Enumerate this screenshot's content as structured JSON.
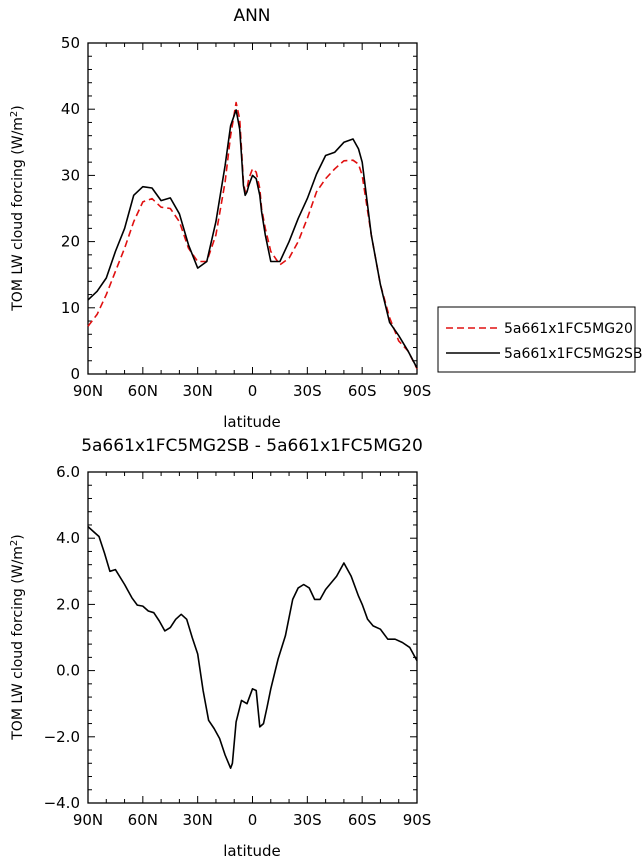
{
  "chart_data": [
    {
      "type": "line",
      "title": "ANN",
      "xlabel": "latitude",
      "ylabel": "TOM LW cloud forcing (W/m",
      "ylabel_sup": "2",
      "ylabel_close": ")",
      "x_ticks": [
        {
          "value": 90,
          "label": "90N"
        },
        {
          "value": 60,
          "label": "60N"
        },
        {
          "value": 30,
          "label": "30N"
        },
        {
          "value": 0,
          "label": "0"
        },
        {
          "value": -30,
          "label": "30S"
        },
        {
          "value": -60,
          "label": "60S"
        },
        {
          "value": -90,
          "label": "90S"
        }
      ],
      "xlim": [
        90,
        -90
      ],
      "ylim": [
        0,
        50
      ],
      "y_ticks": [
        {
          "value": 0,
          "label": "0"
        },
        {
          "value": 10,
          "label": "10"
        },
        {
          "value": 20,
          "label": "20"
        },
        {
          "value": 30,
          "label": "30"
        },
        {
          "value": 40,
          "label": "40"
        },
        {
          "value": 50,
          "label": "50"
        }
      ],
      "legend_placement": "right",
      "series": [
        {
          "name": "5a661x1FC5MG20",
          "color": "#e01010",
          "dash": "dashed",
          "x": [
            90,
            85,
            80,
            75,
            70,
            65,
            60,
            55,
            50,
            45,
            40,
            35,
            30,
            25,
            20,
            15,
            12,
            9,
            7,
            6,
            5,
            4,
            3,
            2,
            0,
            -2,
            -4,
            -5,
            -7,
            -10,
            -15,
            -20,
            -25,
            -30,
            -35,
            -40,
            -45,
            -50,
            -55,
            -58,
            -60,
            -65,
            -70,
            -75,
            -80,
            -85,
            -90
          ],
          "y": [
            7.2,
            9,
            12,
            15.5,
            19,
            23,
            26,
            26.5,
            25.2,
            25,
            23,
            19,
            17,
            17,
            21,
            29,
            36,
            41,
            38.5,
            34,
            29,
            27.5,
            28,
            29.5,
            31,
            30.5,
            28,
            25,
            22,
            18.5,
            16.5,
            17.5,
            20,
            23.5,
            27.5,
            29.5,
            31,
            32.2,
            32.3,
            31.7,
            30,
            21,
            13.5,
            8.5,
            5,
            3.5,
            0.8
          ]
        },
        {
          "name": "5a661x1FC5MG2SB",
          "color": "#000000",
          "dash": "solid",
          "x": [
            90,
            85,
            80,
            75,
            70,
            65,
            60,
            55,
            50,
            45,
            40,
            35,
            30,
            25,
            20,
            15,
            12,
            9,
            7,
            6,
            5,
            4,
            3,
            2,
            0,
            -2,
            -4,
            -5,
            -7,
            -10,
            -15,
            -20,
            -25,
            -30,
            -35,
            -40,
            -45,
            -50,
            -55,
            -58,
            -60,
            -65,
            -70,
            -75,
            -80,
            -85,
            -90
          ],
          "y": [
            11.2,
            12.5,
            14.5,
            18.5,
            22,
            27,
            28.3,
            28.1,
            26.2,
            26.6,
            24.2,
            19.5,
            16,
            17,
            23,
            31.5,
            37.5,
            39.9,
            37,
            33,
            28.5,
            27,
            27.5,
            28.5,
            30,
            29.5,
            27,
            24.5,
            21,
            17,
            17,
            20,
            23.5,
            26.5,
            30.2,
            33,
            33.5,
            35,
            35.5,
            34,
            32,
            21,
            13.5,
            7.8,
            5.8,
            3.5,
            0.9
          ]
        }
      ]
    },
    {
      "type": "line",
      "title": "5a661x1FC5MG2SB - 5a661x1FC5MG20",
      "xlabel": "latitude",
      "ylabel": "TOM LW cloud forcing (W/m",
      "ylabel_sup": "2",
      "ylabel_close": ")",
      "x_ticks": [
        {
          "value": 90,
          "label": "90N"
        },
        {
          "value": 60,
          "label": "60N"
        },
        {
          "value": 30,
          "label": "30N"
        },
        {
          "value": 0,
          "label": "0"
        },
        {
          "value": -30,
          "label": "30S"
        },
        {
          "value": -60,
          "label": "60S"
        },
        {
          "value": -90,
          "label": "90S"
        }
      ],
      "xlim": [
        90,
        -90
      ],
      "ylim": [
        -4,
        6
      ],
      "y_ticks": [
        {
          "value": -4,
          "label": "−4.0"
        },
        {
          "value": -2,
          "label": "−2.0"
        },
        {
          "value": 0,
          "label": "0.0"
        },
        {
          "value": 2,
          "label": "2.0"
        },
        {
          "value": 4,
          "label": "4.0"
        },
        {
          "value": 6,
          "label": "6.0"
        }
      ],
      "series": [
        {
          "color": "#000000",
          "dash": "solid",
          "x": [
            90,
            87,
            84,
            81,
            78,
            75,
            70,
            66,
            63,
            60,
            57,
            54,
            51,
            48,
            45,
            42,
            39,
            36,
            33,
            30,
            27,
            24,
            21,
            18,
            15,
            12,
            11,
            9,
            6,
            3,
            0,
            -2,
            -4,
            -6,
            -8,
            -10,
            -14,
            -18,
            -22,
            -25,
            -28,
            -31,
            -34,
            -37,
            -40,
            -43,
            -46,
            -50,
            -54,
            -58,
            -60,
            -63,
            -66,
            -70,
            -74,
            -78,
            -82,
            -86,
            -90
          ],
          "y": [
            4.35,
            4.2,
            4.05,
            3.55,
            3,
            3.05,
            2.6,
            2.2,
            1.98,
            1.95,
            1.8,
            1.75,
            1.5,
            1.2,
            1.3,
            1.55,
            1.7,
            1.55,
            1,
            0.5,
            -0.6,
            -1.5,
            -1.75,
            -2.05,
            -2.55,
            -2.95,
            -2.8,
            -1.55,
            -0.9,
            -1.0,
            -0.55,
            -0.6,
            -1.7,
            -1.6,
            -1.1,
            -0.55,
            0.35,
            1.05,
            2.15,
            2.5,
            2.6,
            2.5,
            2.15,
            2.15,
            2.45,
            2.65,
            2.85,
            3.25,
            2.85,
            2.25,
            2.0,
            1.55,
            1.35,
            1.25,
            0.95,
            0.95,
            0.85,
            0.7,
            0.3
          ]
        }
      ]
    }
  ]
}
